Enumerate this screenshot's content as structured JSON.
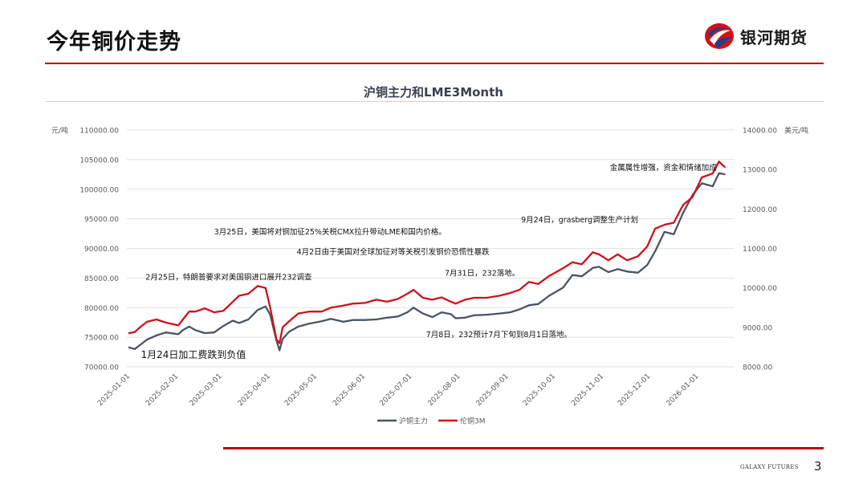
{
  "slide": {
    "title": "今年铜价走势",
    "logo_text": "银河期货",
    "footer_brand": "GALAXY FUTURES",
    "page_number": "3"
  },
  "colors": {
    "accent": "#c00000",
    "shfe": "#4a5563",
    "lme": "#d0111b"
  },
  "chart_data": {
    "type": "line",
    "title": "沪铜主力和LME3Month",
    "y_left": {
      "unit": "元/吨",
      "min": 70000,
      "max": 110000,
      "step": 5000,
      "ticks": [
        "70000.00",
        "75000.00",
        "80000.00",
        "85000.00",
        "90000.00",
        "95000.00",
        "100000.00",
        "105000.00",
        "110000.00"
      ]
    },
    "y_right": {
      "unit": "美元/吨",
      "min": 8000,
      "max": 14000,
      "step": 1000,
      "ticks": [
        "8000.00",
        "9000.00",
        "10000.00",
        "11000.00",
        "12000.00",
        "13000.00",
        "14000.00"
      ]
    },
    "x_ticks": [
      "2025-01-01",
      "2025-02-01",
      "2025-03-01",
      "2025-04-01",
      "2025-05-01",
      "2025-06-01",
      "2025-07-01",
      "2025-08-01",
      "2025-09-01",
      "2025-10-01",
      "2025-11-01",
      "2025-12-01",
      "2026-01-01"
    ],
    "grid": true,
    "legend": "bottom",
    "series": [
      {
        "name": "沪铜主力",
        "axis": "left",
        "points": [
          [
            "2025-01-02",
            73300
          ],
          [
            "2025-01-06",
            73000
          ],
          [
            "2025-01-10",
            73800
          ],
          [
            "2025-01-14",
            74600
          ],
          [
            "2025-01-20",
            75300
          ],
          [
            "2025-01-26",
            75800
          ],
          [
            "2025-02-03",
            75500
          ],
          [
            "2025-02-06",
            76200
          ],
          [
            "2025-02-10",
            76800
          ],
          [
            "2025-02-14",
            76200
          ],
          [
            "2025-02-20",
            75700
          ],
          [
            "2025-02-26",
            75800
          ],
          [
            "2025-03-04",
            76900
          ],
          [
            "2025-03-10",
            77800
          ],
          [
            "2025-03-14",
            77400
          ],
          [
            "2025-03-20",
            78000
          ],
          [
            "2025-03-26",
            79600
          ],
          [
            "2025-03-31",
            80200
          ],
          [
            "2025-04-03",
            78800
          ],
          [
            "2025-04-07",
            74500
          ],
          [
            "2025-04-09",
            72800
          ],
          [
            "2025-04-11",
            74700
          ],
          [
            "2025-04-15",
            75900
          ],
          [
            "2025-04-21",
            76800
          ],
          [
            "2025-04-28",
            77300
          ],
          [
            "2025-05-06",
            77700
          ],
          [
            "2025-05-12",
            78100
          ],
          [
            "2025-05-20",
            77600
          ],
          [
            "2025-05-26",
            77900
          ],
          [
            "2025-06-03",
            77900
          ],
          [
            "2025-06-10",
            78000
          ],
          [
            "2025-06-17",
            78300
          ],
          [
            "2025-06-24",
            78500
          ],
          [
            "2025-06-30",
            79200
          ],
          [
            "2025-07-04",
            80000
          ],
          [
            "2025-07-10",
            79000
          ],
          [
            "2025-07-16",
            78400
          ],
          [
            "2025-07-22",
            79200
          ],
          [
            "2025-07-28",
            78900
          ],
          [
            "2025-07-31",
            78200
          ],
          [
            "2025-08-06",
            78300
          ],
          [
            "2025-08-12",
            78700
          ],
          [
            "2025-08-20",
            78800
          ],
          [
            "2025-08-28",
            79000
          ],
          [
            "2025-09-04",
            79200
          ],
          [
            "2025-09-10",
            79700
          ],
          [
            "2025-09-16",
            80400
          ],
          [
            "2025-09-22",
            80600
          ],
          [
            "2025-09-29",
            82000
          ],
          [
            "2025-10-08",
            83400
          ],
          [
            "2025-10-14",
            85500
          ],
          [
            "2025-10-20",
            85300
          ],
          [
            "2025-10-27",
            86700
          ],
          [
            "2025-10-31",
            86900
          ],
          [
            "2025-11-06",
            86000
          ],
          [
            "2025-11-12",
            86500
          ],
          [
            "2025-11-18",
            86100
          ],
          [
            "2025-11-25",
            85900
          ],
          [
            "2025-12-01",
            87200
          ],
          [
            "2025-12-06",
            89500
          ],
          [
            "2025-12-12",
            92800
          ],
          [
            "2025-12-18",
            92400
          ],
          [
            "2025-12-24",
            96000
          ],
          [
            "2025-12-30",
            99000
          ],
          [
            "2026-01-05",
            101000
          ],
          [
            "2026-01-12",
            100500
          ],
          [
            "2026-01-16",
            102700
          ],
          [
            "2026-01-20",
            102500
          ]
        ]
      },
      {
        "name": "伦铜3M",
        "axis": "right",
        "points": [
          [
            "2025-01-02",
            8850
          ],
          [
            "2025-01-06",
            8880
          ],
          [
            "2025-01-10",
            9020
          ],
          [
            "2025-01-14",
            9140
          ],
          [
            "2025-01-20",
            9200
          ],
          [
            "2025-01-26",
            9120
          ],
          [
            "2025-02-03",
            9050
          ],
          [
            "2025-02-06",
            9200
          ],
          [
            "2025-02-10",
            9400
          ],
          [
            "2025-02-14",
            9400
          ],
          [
            "2025-02-20",
            9480
          ],
          [
            "2025-02-26",
            9380
          ],
          [
            "2025-03-04",
            9420
          ],
          [
            "2025-03-10",
            9650
          ],
          [
            "2025-03-14",
            9800
          ],
          [
            "2025-03-20",
            9850
          ],
          [
            "2025-03-26",
            10050
          ],
          [
            "2025-03-31",
            10000
          ],
          [
            "2025-04-03",
            9500
          ],
          [
            "2025-04-07",
            8700
          ],
          [
            "2025-04-09",
            8600
          ],
          [
            "2025-04-11",
            9000
          ],
          [
            "2025-04-15",
            9150
          ],
          [
            "2025-04-21",
            9350
          ],
          [
            "2025-04-28",
            9400
          ],
          [
            "2025-05-06",
            9400
          ],
          [
            "2025-05-12",
            9500
          ],
          [
            "2025-05-20",
            9550
          ],
          [
            "2025-05-26",
            9600
          ],
          [
            "2025-06-03",
            9620
          ],
          [
            "2025-06-10",
            9700
          ],
          [
            "2025-06-17",
            9650
          ],
          [
            "2025-06-24",
            9720
          ],
          [
            "2025-06-30",
            9850
          ],
          [
            "2025-07-04",
            9950
          ],
          [
            "2025-07-10",
            9750
          ],
          [
            "2025-07-16",
            9700
          ],
          [
            "2025-07-22",
            9760
          ],
          [
            "2025-07-28",
            9650
          ],
          [
            "2025-07-31",
            9600
          ],
          [
            "2025-08-06",
            9700
          ],
          [
            "2025-08-12",
            9750
          ],
          [
            "2025-08-20",
            9750
          ],
          [
            "2025-08-28",
            9800
          ],
          [
            "2025-09-04",
            9870
          ],
          [
            "2025-09-10",
            9950
          ],
          [
            "2025-09-16",
            10150
          ],
          [
            "2025-09-22",
            10100
          ],
          [
            "2025-09-29",
            10300
          ],
          [
            "2025-10-08",
            10500
          ],
          [
            "2025-10-14",
            10650
          ],
          [
            "2025-10-20",
            10600
          ],
          [
            "2025-10-27",
            10900
          ],
          [
            "2025-10-31",
            10850
          ],
          [
            "2025-11-06",
            10700
          ],
          [
            "2025-11-12",
            10850
          ],
          [
            "2025-11-18",
            10700
          ],
          [
            "2025-11-25",
            10800
          ],
          [
            "2025-12-01",
            11050
          ],
          [
            "2025-12-06",
            11500
          ],
          [
            "2025-12-12",
            11600
          ],
          [
            "2025-12-18",
            11650
          ],
          [
            "2025-12-24",
            12100
          ],
          [
            "2025-12-30",
            12300
          ],
          [
            "2026-01-05",
            12800
          ],
          [
            "2026-01-12",
            12900
          ],
          [
            "2026-01-16",
            13200
          ],
          [
            "2026-01-20",
            13050
          ]
        ]
      }
    ],
    "annotations": [
      {
        "text": "金属属性增强，资金和情绪加成",
        "date": "2025-11-07",
        "value": 103200
      },
      {
        "text": "9月24日，grasberg调整生产计划",
        "date": "2025-09-11",
        "value": 94400
      },
      {
        "text": "3月25日，美国将对铜加征25%关税CMX拉升带动LME和国内价格。",
        "date": "2025-02-26",
        "value": 92400
      },
      {
        "text": "4月2日由于美国对全球加征对等关税引发铜价恐慌性暴跌",
        "date": "2025-04-20",
        "value": 89000
      },
      {
        "text": "7月31日，232落地。",
        "date": "2025-07-24",
        "value": 85400
      },
      {
        "text": "2月25日，特朗普要求对美国铜进口展开232调查",
        "date": "2025-01-13",
        "value": 84700
      },
      {
        "text": "7月8日，232预计7月下旬到8月1日落地。",
        "date": "2025-07-12",
        "value": 75000
      },
      {
        "text": "1月24日加工费跌到负值",
        "date": "2025-01-10",
        "value": 71500,
        "large": true
      }
    ]
  }
}
